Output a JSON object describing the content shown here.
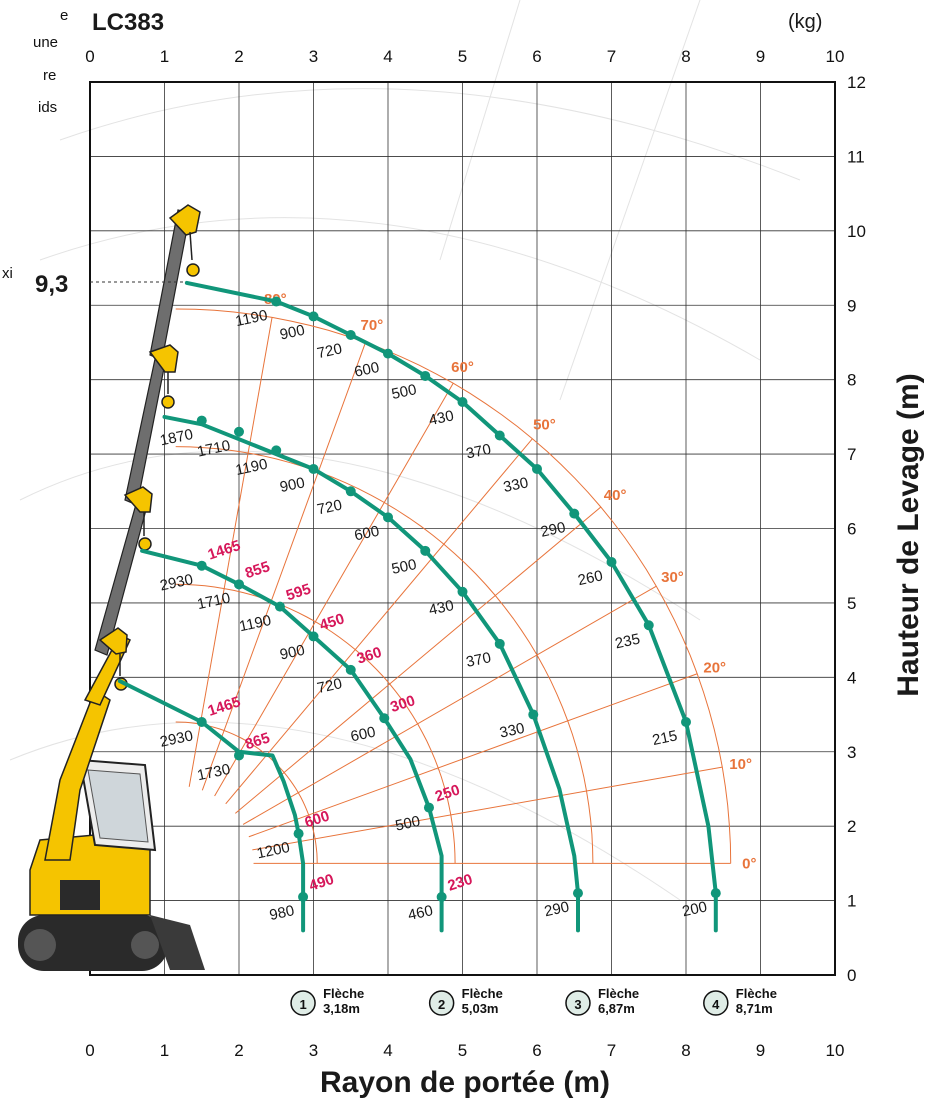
{
  "page": {
    "model": "LC383",
    "unit": "(kg)",
    "max_height_value": "9,3",
    "max_label_fragment": "xi",
    "left_text_fragments": [
      "e",
      "une",
      "re",
      "ids"
    ],
    "x_axis_title": "Rayon de portée (m)",
    "y_axis_title": "Hauteur de Levage (m)"
  },
  "colors": {
    "curve": "#11967a",
    "angle": "#e8743b",
    "red_label": "#d6175a",
    "grid": "#333333",
    "boom_yellow": "#f5c400",
    "boom_gray": "#6e6e6e"
  },
  "chart_data": {
    "type": "line",
    "title": "LC383",
    "xlabel": "Rayon de portée (m)",
    "ylabel": "Hauteur de Levage (m)",
    "xlim": [
      0,
      10
    ],
    "ylim": [
      0,
      12
    ],
    "top_axis_unit": "(kg)",
    "x_ticks": [
      0,
      1,
      2,
      3,
      4,
      5,
      6,
      7,
      8,
      9,
      10
    ],
    "y_ticks": [
      0,
      1,
      2,
      3,
      4,
      5,
      6,
      7,
      8,
      9,
      10,
      11,
      12
    ],
    "grid": true,
    "max_height": 9.3,
    "angle_labels": [
      "0°",
      "10°",
      "20°",
      "30°",
      "40°",
      "50°",
      "60°",
      "70°",
      "80°"
    ],
    "angles_deg": [
      0,
      10,
      20,
      30,
      40,
      50,
      60,
      70,
      80
    ],
    "angle_arc_center": [
      1.15,
      1.5
    ],
    "angle_arc_radii": [
      1.9,
      3.75,
      5.6,
      7.45
    ],
    "booms": [
      {
        "number": "1",
        "name": "Flèche",
        "length_label": "3,18m",
        "points": [
          {
            "x": 0.4,
            "y": 3.95
          },
          {
            "x": 1.5,
            "y": 3.4,
            "load": "2930",
            "load2": "1465"
          },
          {
            "x": 2.0,
            "y": 3.0
          },
          {
            "x": 2.45,
            "y": 2.95,
            "load": "1730",
            "load2": "865"
          },
          {
            "x": 2.6,
            "y": 2.6
          },
          {
            "x": 2.75,
            "y": 2.15
          },
          {
            "x": 2.8,
            "y": 1.9,
            "load": "1200",
            "load2": "600"
          },
          {
            "x": 2.86,
            "y": 1.5
          },
          {
            "x": 2.86,
            "y": 1.05,
            "load": "980",
            "load2": "490"
          },
          {
            "x": 2.86,
            "y": 0.6
          }
        ],
        "loads": [
          {
            "x": 1.5,
            "y": 3.4,
            "black": "2930",
            "red": "1465"
          },
          {
            "x": 2.0,
            "y": 2.95,
            "black": "1730",
            "red": "865"
          },
          {
            "x": 2.8,
            "y": 1.9,
            "black": "1200",
            "red": "600"
          },
          {
            "x": 2.86,
            "y": 1.05,
            "black": "980",
            "red": "490"
          }
        ]
      },
      {
        "number": "2",
        "name": "Flèche",
        "length_label": "5,03m",
        "points": [
          {
            "x": 0.7,
            "y": 5.7
          },
          {
            "x": 1.5,
            "y": 5.5
          },
          {
            "x": 2.0,
            "y": 5.25
          },
          {
            "x": 2.55,
            "y": 4.95
          },
          {
            "x": 3.0,
            "y": 4.55
          },
          {
            "x": 3.5,
            "y": 4.1
          },
          {
            "x": 3.95,
            "y": 3.45
          },
          {
            "x": 4.3,
            "y": 2.9
          },
          {
            "x": 4.55,
            "y": 2.25
          },
          {
            "x": 4.72,
            "y": 1.6
          },
          {
            "x": 4.72,
            "y": 1.1
          },
          {
            "x": 4.72,
            "y": 0.6
          }
        ],
        "loads": [
          {
            "x": 1.5,
            "y": 5.5,
            "black": "2930",
            "red": "1465"
          },
          {
            "x": 2.0,
            "y": 5.25,
            "black": "1710",
            "red": "855"
          },
          {
            "x": 2.55,
            "y": 4.95,
            "black": "1190",
            "red": "595"
          },
          {
            "x": 3.0,
            "y": 4.55,
            "black": "900",
            "red": "450"
          },
          {
            "x": 3.5,
            "y": 4.1,
            "black": "720",
            "red": "360"
          },
          {
            "x": 3.95,
            "y": 3.45,
            "black": "600",
            "red": "300"
          },
          {
            "x": 4.55,
            "y": 2.25,
            "black": "500",
            "red": "250"
          },
          {
            "x": 4.72,
            "y": 1.05,
            "black": "460",
            "red": "230"
          }
        ]
      },
      {
        "number": "3",
        "name": "Flèche",
        "length_label": "6,87m",
        "points": [
          {
            "x": 1.0,
            "y": 7.5
          },
          {
            "x": 1.5,
            "y": 7.4
          },
          {
            "x": 2.0,
            "y": 7.2
          },
          {
            "x": 2.5,
            "y": 7.0
          },
          {
            "x": 3.0,
            "y": 6.8
          },
          {
            "x": 3.5,
            "y": 6.5
          },
          {
            "x": 4.0,
            "y": 6.15
          },
          {
            "x": 4.5,
            "y": 5.7
          },
          {
            "x": 5.0,
            "y": 5.15
          },
          {
            "x": 5.5,
            "y": 4.45
          },
          {
            "x": 5.95,
            "y": 3.5
          },
          {
            "x": 6.3,
            "y": 2.5
          },
          {
            "x": 6.5,
            "y": 1.6
          },
          {
            "x": 6.55,
            "y": 1.1
          },
          {
            "x": 6.55,
            "y": 0.6
          }
        ],
        "loads": [
          {
            "x": 1.5,
            "y": 7.45,
            "black": "1870"
          },
          {
            "x": 2.0,
            "y": 7.3,
            "black": "1710"
          },
          {
            "x": 2.5,
            "y": 7.05,
            "black": "1190"
          },
          {
            "x": 3.0,
            "y": 6.8,
            "black": "900"
          },
          {
            "x": 3.5,
            "y": 6.5,
            "black": "720"
          },
          {
            "x": 4.0,
            "y": 6.15,
            "black": "600"
          },
          {
            "x": 4.5,
            "y": 5.7,
            "black": "500"
          },
          {
            "x": 5.0,
            "y": 5.15,
            "black": "430"
          },
          {
            "x": 5.5,
            "y": 4.45,
            "black": "370"
          },
          {
            "x": 5.95,
            "y": 3.5,
            "black": "330"
          },
          {
            "x": 6.55,
            "y": 1.1,
            "black": "290"
          }
        ]
      },
      {
        "number": "4",
        "name": "Flèche",
        "length_label": "8,71m",
        "points": [
          {
            "x": 1.3,
            "y": 9.3
          },
          {
            "x": 2.5,
            "y": 9.05
          },
          {
            "x": 3.0,
            "y": 8.85
          },
          {
            "x": 3.5,
            "y": 8.6
          },
          {
            "x": 4.0,
            "y": 8.35
          },
          {
            "x": 4.5,
            "y": 8.05
          },
          {
            "x": 5.0,
            "y": 7.7
          },
          {
            "x": 5.5,
            "y": 7.25
          },
          {
            "x": 6.0,
            "y": 6.8
          },
          {
            "x": 6.5,
            "y": 6.2
          },
          {
            "x": 7.0,
            "y": 5.55
          },
          {
            "x": 7.5,
            "y": 4.7
          },
          {
            "x": 8.0,
            "y": 3.4
          },
          {
            "x": 8.3,
            "y": 2.0
          },
          {
            "x": 8.4,
            "y": 1.1
          },
          {
            "x": 8.4,
            "y": 0.6
          }
        ],
        "loads": [
          {
            "x": 2.5,
            "y": 9.05,
            "black": "1190"
          },
          {
            "x": 3.0,
            "y": 8.85,
            "black": "900"
          },
          {
            "x": 3.5,
            "y": 8.6,
            "black": "720"
          },
          {
            "x": 4.0,
            "y": 8.35,
            "black": "600"
          },
          {
            "x": 4.5,
            "y": 8.05,
            "black": "500"
          },
          {
            "x": 5.0,
            "y": 7.7,
            "black": "430"
          },
          {
            "x": 5.5,
            "y": 7.25,
            "black": "370"
          },
          {
            "x": 6.0,
            "y": 6.8,
            "black": "330"
          },
          {
            "x": 6.5,
            "y": 6.2,
            "black": "290"
          },
          {
            "x": 7.0,
            "y": 5.55,
            "black": "260"
          },
          {
            "x": 7.5,
            "y": 4.7,
            "black": "235"
          },
          {
            "x": 8.0,
            "y": 3.4,
            "black": "215"
          },
          {
            "x": 8.4,
            "y": 1.1,
            "black": "200"
          }
        ]
      }
    ]
  }
}
